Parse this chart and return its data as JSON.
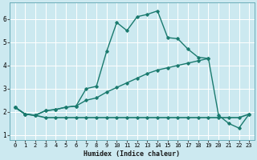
{
  "xlabel": "Humidex (Indice chaleur)",
  "bg_color": "#cce9f0",
  "grid_color": "#ffffff",
  "line_color": "#1a7a6e",
  "xlim": [
    -0.5,
    23.5
  ],
  "ylim": [
    0.8,
    6.7
  ],
  "yticks": [
    1,
    2,
    3,
    4,
    5,
    6
  ],
  "xticks": [
    0,
    1,
    2,
    3,
    4,
    5,
    6,
    7,
    8,
    9,
    10,
    11,
    12,
    13,
    14,
    15,
    16,
    17,
    18,
    19,
    20,
    21,
    22,
    23
  ],
  "flat_x": [
    0,
    1,
    2,
    3,
    4,
    5,
    6,
    7,
    8,
    9,
    10,
    11,
    12,
    13,
    14,
    15,
    16,
    17,
    18,
    19,
    20,
    21,
    22,
    23
  ],
  "flat_y": [
    2.2,
    1.9,
    1.85,
    1.75,
    1.75,
    1.75,
    1.75,
    1.75,
    1.75,
    1.75,
    1.75,
    1.75,
    1.75,
    1.75,
    1.75,
    1.75,
    1.75,
    1.75,
    1.75,
    1.75,
    1.75,
    1.75,
    1.75,
    1.9
  ],
  "diag_x": [
    0,
    1,
    2,
    3,
    4,
    5,
    6,
    7,
    8,
    9,
    10,
    11,
    12,
    13,
    14,
    15,
    16,
    17,
    18,
    19
  ],
  "diag_y": [
    2.2,
    1.9,
    1.85,
    2.05,
    2.1,
    2.2,
    2.25,
    2.5,
    2.6,
    2.85,
    3.05,
    3.25,
    3.45,
    3.65,
    3.8,
    3.9,
    4.0,
    4.1,
    4.2,
    4.3
  ],
  "upper_x": [
    0,
    1,
    2,
    3,
    4,
    5,
    6,
    7,
    8,
    9,
    10,
    11,
    12,
    13,
    14,
    15,
    16,
    17,
    18,
    19,
    20,
    21,
    22,
    23
  ],
  "upper_y": [
    2.2,
    1.9,
    1.85,
    2.05,
    2.1,
    2.2,
    2.25,
    3.0,
    3.1,
    4.6,
    5.85,
    5.5,
    6.1,
    6.2,
    6.35,
    5.2,
    5.15,
    4.7,
    4.35,
    4.3,
    1.85,
    1.5,
    1.3,
    1.9
  ]
}
